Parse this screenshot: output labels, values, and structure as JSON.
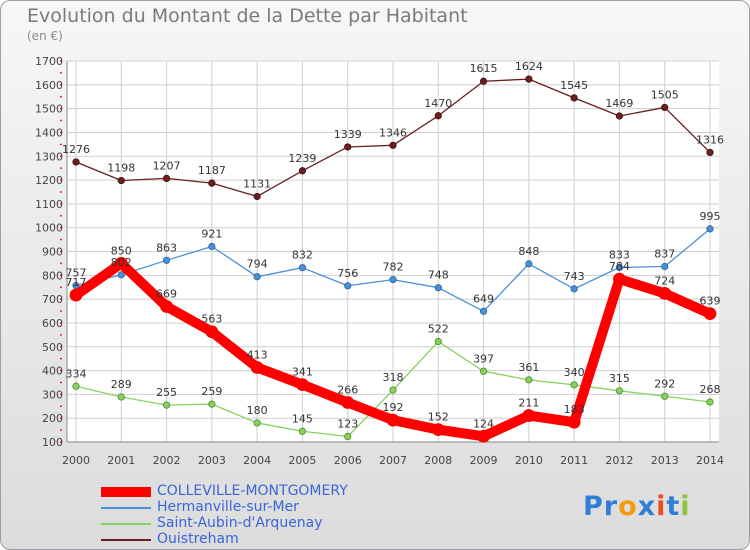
{
  "title": "Evolution du Montant de la Dette par Habitant",
  "subtitle": "(en €)",
  "logo": {
    "text": "Proxiti",
    "letters": [
      {
        "ch": "P",
        "color": "#2f7fd6"
      },
      {
        "ch": "r",
        "color": "#2f7fd6"
      },
      {
        "ch": "o",
        "color": "#f39c12"
      },
      {
        "ch": "x",
        "color": "#2f7fd6"
      },
      {
        "ch": "i",
        "color": "#e94e1b"
      },
      {
        "ch": "t",
        "color": "#2f7fd6"
      },
      {
        "ch": "i",
        "color": "#8cc63f"
      }
    ]
  },
  "chart_data": {
    "type": "line",
    "x": [
      "2000",
      "2001",
      "2002",
      "2003",
      "2004",
      "2005",
      "2006",
      "2007",
      "2008",
      "2009",
      "2010",
      "2011",
      "2012",
      "2013",
      "2014"
    ],
    "ylim": [
      100,
      1700
    ],
    "yticks": [
      100,
      200,
      300,
      400,
      500,
      600,
      700,
      800,
      900,
      1000,
      1100,
      1200,
      1300,
      1400,
      1500,
      1600,
      1700
    ],
    "grid": true,
    "series": [
      {
        "name": "COLLEVILLE-MONTGOMERY",
        "color": "#ff0000",
        "values": [
          717,
          850,
          669,
          563,
          413,
          341,
          266,
          192,
          152,
          124,
          211,
          183,
          784,
          724,
          639
        ]
      },
      {
        "name": "Hermanville-sur-Mer",
        "color": "#4a90d9",
        "values": [
          757,
          802,
          863,
          921,
          794,
          832,
          756,
          782,
          748,
          649,
          848,
          743,
          833,
          837,
          995
        ]
      },
      {
        "name": "Saint-Aubin-d'Arquenay",
        "color": "#88d060",
        "values": [
          334,
          289,
          255,
          259,
          180,
          145,
          123,
          318,
          522,
          397,
          361,
          340,
          315,
          292,
          268
        ]
      },
      {
        "name": "Ouistreham",
        "color": "#6b1f1f",
        "values": [
          1276,
          1198,
          1207,
          1187,
          1131,
          1239,
          1339,
          1346,
          1470,
          1615,
          1624,
          1545,
          1469,
          1505,
          1316
        ]
      }
    ],
    "labels": [
      [
        "717",
        "850",
        "669",
        "563",
        "413",
        "341",
        "266",
        "192",
        "152",
        "124",
        "211",
        "183",
        "784",
        "724",
        "639"
      ],
      [
        "757",
        "802",
        "863",
        "921",
        "794",
        "832",
        "756",
        "782",
        "748",
        "649",
        "848",
        "743",
        "833",
        "837",
        "995"
      ],
      [
        "334",
        "289",
        "255",
        "259",
        "180",
        "145",
        "123",
        "318",
        "522",
        "397",
        "361",
        "340",
        "315",
        "292",
        "268"
      ],
      [
        "1276",
        "1198",
        "1207",
        "1187",
        "1131",
        "1239",
        "1339",
        "1346",
        "1470",
        "1615",
        "1624",
        "1545",
        "1469",
        "1505",
        "1316"
      ]
    ]
  }
}
